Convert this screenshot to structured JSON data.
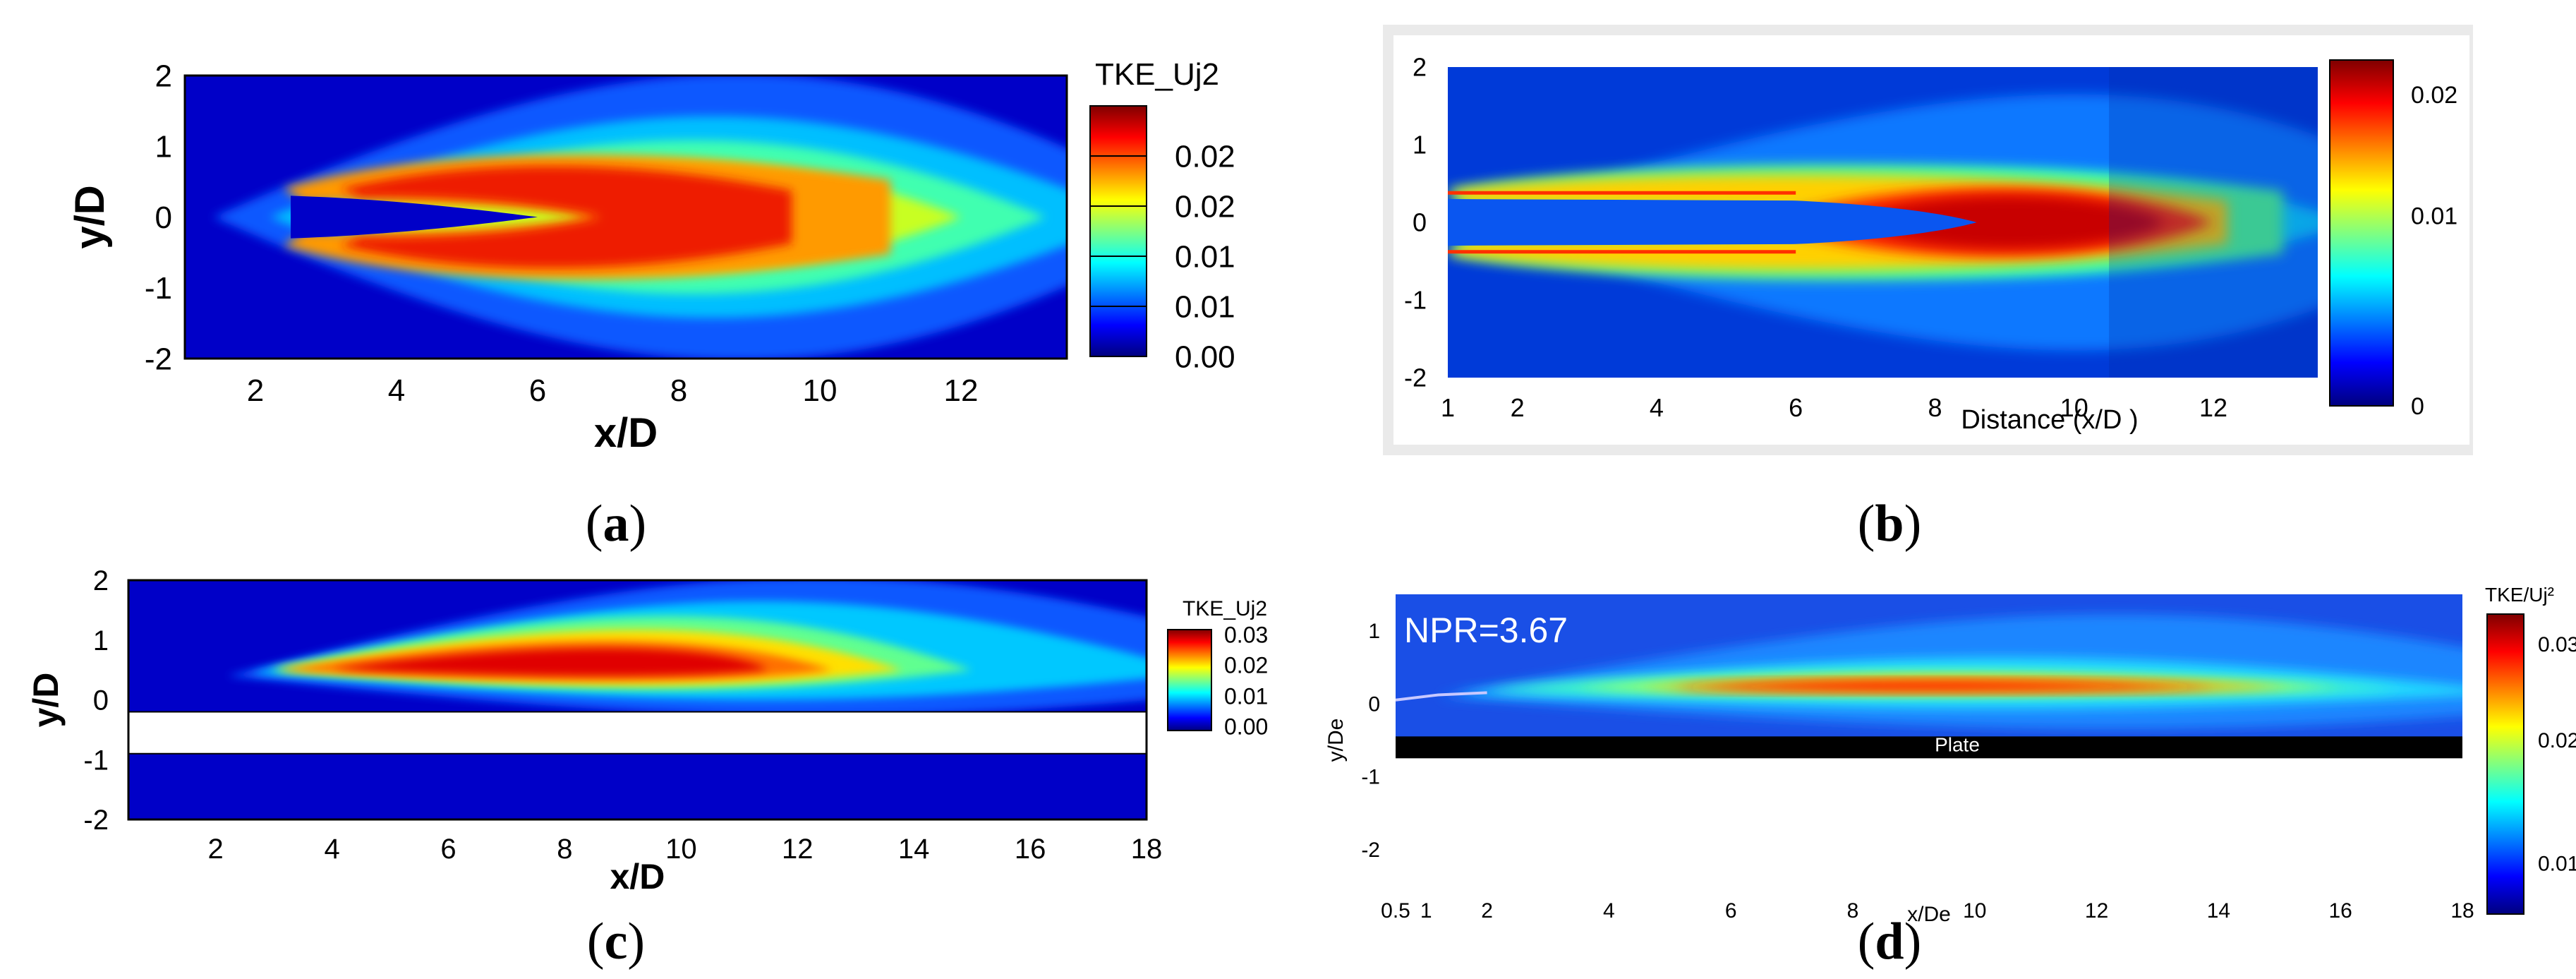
{
  "colormap": [
    "#00007f",
    "#0000ff",
    "#0080ff",
    "#00ffff",
    "#80ff80",
    "#ffff00",
    "#ff8000",
    "#ff0000",
    "#7f0000"
  ],
  "panels": [
    {
      "caption": "a",
      "chart_data": {
        "type": "heatmap",
        "variable": "turbulent kinetic energy",
        "xlabel": "x/D",
        "ylabel": "y/D",
        "xlim": [
          1,
          13.5
        ],
        "ylim": [
          -2,
          2
        ],
        "x_ticks": [
          "2",
          "4",
          "6",
          "8",
          "10",
          "12"
        ],
        "y_ticks": [
          "2",
          "1",
          "0",
          "-1",
          "-2"
        ],
        "colorbar_title": "TKE_Uj2",
        "colorbar_ticks": [
          "0.02",
          "0.02",
          "0.01",
          "0.01",
          "0.00"
        ],
        "colorbar_range": [
          0,
          0.03
        ],
        "nozzle_lip_y": 0.4,
        "core_end_x": 6,
        "peak_x": 8,
        "peak_value": 0.028
      }
    },
    {
      "caption": "b",
      "chart_data": {
        "type": "heatmap",
        "variable": "turbulent kinetic energy",
        "xlabel": "Distance (x/D )",
        "ylabel": "",
        "xlim": [
          1,
          13.5
        ],
        "ylim": [
          -2,
          2
        ],
        "x_ticks": [
          "1",
          "2",
          "4",
          "6",
          "8",
          "10",
          "12"
        ],
        "y_ticks": [
          "2",
          "1",
          "0",
          "-1",
          "-2"
        ],
        "colorbar_title": "",
        "colorbar_ticks": [
          "0.02",
          "0.01",
          "0"
        ],
        "colorbar_range": [
          0,
          0.025
        ],
        "nozzle_lip_y": 0.4,
        "core_end_x": 8.5,
        "peak_x": 10,
        "peak_value": 0.025
      }
    },
    {
      "caption": "c",
      "chart_data": {
        "type": "heatmap",
        "variable": "turbulent kinetic energy",
        "xlabel": "x/D",
        "ylabel": "y/D",
        "xlim": [
          0.5,
          18
        ],
        "ylim": [
          -2,
          2
        ],
        "x_ticks": [
          "2",
          "4",
          "6",
          "8",
          "10",
          "12",
          "14",
          "16",
          "18"
        ],
        "y_ticks": [
          "2",
          "1",
          "0",
          "-1",
          "-2"
        ],
        "colorbar_title": "TKE_Uj2",
        "colorbar_ticks": [
          "0.03",
          "0.02",
          "0.01",
          "0.00"
        ],
        "colorbar_range": [
          0,
          0.035
        ],
        "plate_band_y": [
          -0.9,
          -0.2
        ],
        "peak_x": 10,
        "peak_value": 0.033
      }
    },
    {
      "caption": "d",
      "chart_data": {
        "type": "heatmap",
        "variable": "turbulent kinetic energy",
        "xlabel": "x/De",
        "ylabel": "y/De",
        "xlim": [
          0.5,
          18
        ],
        "ylim": [
          -2.5,
          1.5
        ],
        "x_ticks": [
          "0.5",
          "1",
          "2",
          "4",
          "6",
          "8",
          "10",
          "12",
          "14",
          "16",
          "18"
        ],
        "y_ticks": [
          "1",
          "0",
          "-1",
          "-2"
        ],
        "colorbar_title": "TKE/Uj²",
        "colorbar_ticks": [
          "0.03",
          "0.02",
          "0.01"
        ],
        "colorbar_range": [
          0,
          0.035
        ],
        "annotation": "NPR=3.67",
        "plate_label": "Plate",
        "plate_y": -0.6,
        "peak_x": 11,
        "peak_value": 0.03
      }
    }
  ]
}
